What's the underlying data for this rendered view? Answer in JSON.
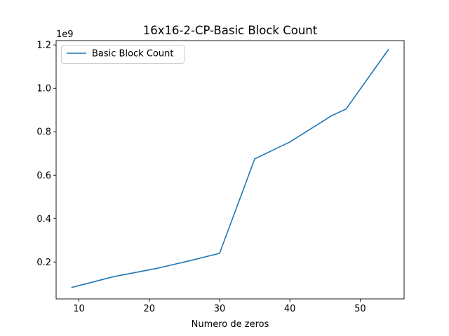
{
  "chart_data": {
    "type": "line",
    "title": "16x16-2-CP-Basic Block Count",
    "xlabel": "Numero de zeros",
    "ylabel": "",
    "y_offset_label": "1e9",
    "xlim": [
      6.75,
      56.25
    ],
    "ylim": [
      0.03,
      1.22
    ],
    "xticks": [
      10,
      20,
      30,
      40,
      50
    ],
    "yticks": [
      0.2,
      0.4,
      0.6,
      0.8,
      1.0,
      1.2
    ],
    "ytick_labels": [
      "0.2",
      "0.4",
      "0.6",
      "0.8",
      "1.0",
      "1.2"
    ],
    "grid": false,
    "legend_position": "upper-left",
    "series": [
      {
        "name": "Basic Block Count",
        "color": "#1f77b4",
        "x": [
          9,
          15,
          21,
          25,
          30,
          35,
          40,
          46,
          48,
          54
        ],
        "y": [
          0.083,
          0.133,
          0.17,
          0.2,
          0.24,
          0.675,
          0.753,
          0.875,
          0.905,
          1.178
        ]
      }
    ]
  }
}
